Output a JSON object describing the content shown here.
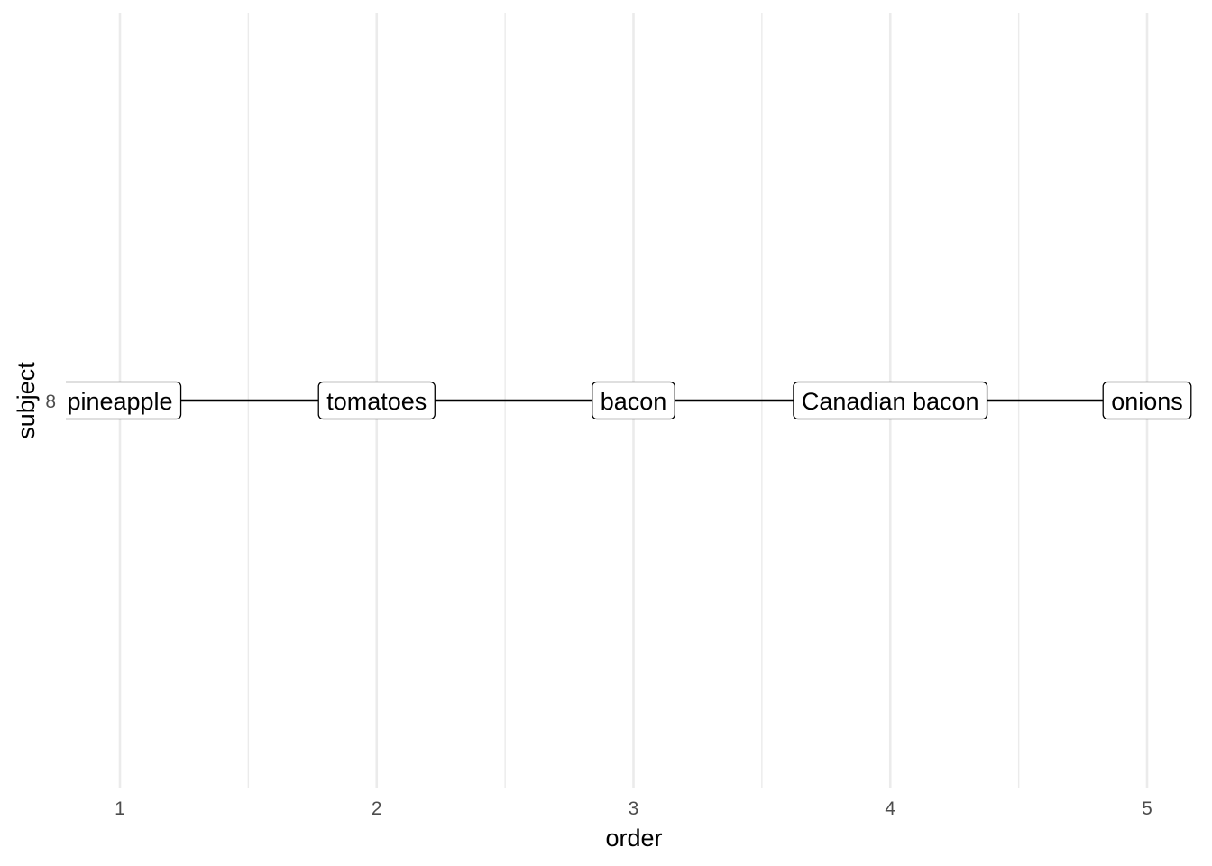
{
  "chart_data": {
    "type": "line",
    "title": "",
    "xlabel": "order",
    "ylabel": "subject",
    "x_ticks": [
      1,
      2,
      3,
      4,
      5
    ],
    "y_ticks": [
      "8"
    ],
    "xlim": [
      0.78,
      5.22
    ],
    "grid": "vertical major and minor",
    "legend": "none",
    "series": [
      {
        "subject": "8",
        "points": [
          {
            "order": 1,
            "label": "pineapple"
          },
          {
            "order": 2,
            "label": "tomatoes"
          },
          {
            "order": 3,
            "label": "bacon"
          },
          {
            "order": 4,
            "label": "Canadian bacon"
          },
          {
            "order": 5,
            "label": "onions"
          }
        ]
      }
    ],
    "colors": {
      "grid": "#ebebeb",
      "line": "#000000",
      "label_border": "#000000",
      "label_fill": "#ffffff",
      "tick_text": "#4d4d4d"
    }
  }
}
